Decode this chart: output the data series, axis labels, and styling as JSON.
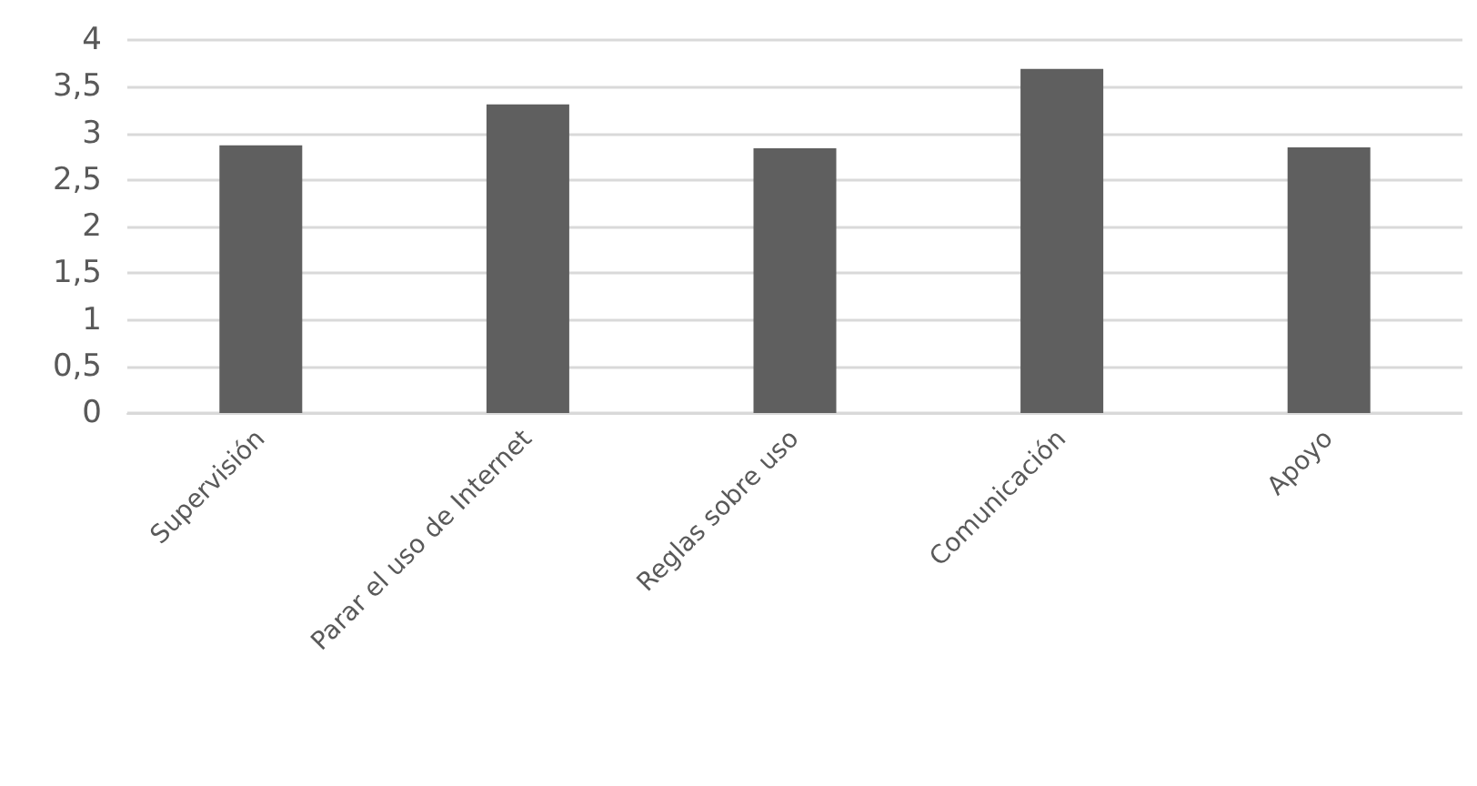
{
  "chart_data": {
    "type": "bar",
    "categories": [
      "Supervisión",
      "Parar el uso de Internet",
      "Reglas sobre uso",
      "Comunicación",
      "Apoyo"
    ],
    "values": [
      2.87,
      3.31,
      2.84,
      3.69,
      2.85
    ],
    "color": "#5f5f5f",
    "ylim": [
      0,
      4
    ],
    "yticks": [
      0,
      {
        "value": 0.5,
        "label": "0,5"
      },
      1,
      {
        "value": 1.5,
        "label": "1,5"
      },
      2,
      {
        "value": 2.5,
        "label": "2,5"
      },
      3,
      {
        "value": 3.5,
        "label": "3,5"
      },
      4
    ],
    "grid": "y"
  }
}
